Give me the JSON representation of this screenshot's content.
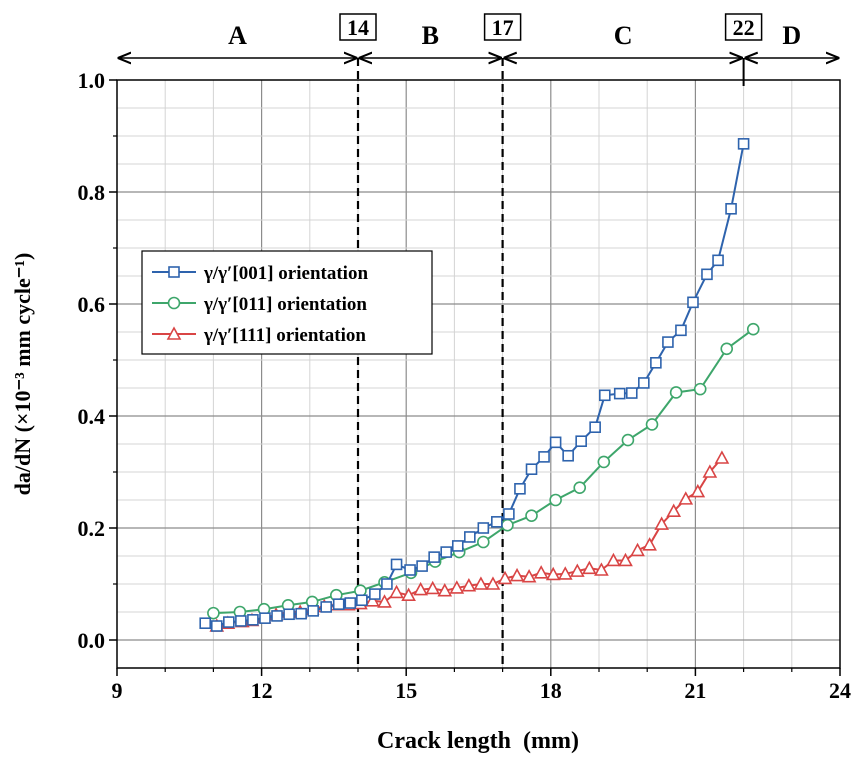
{
  "chart_data": {
    "type": "line",
    "xlabel": "Crack length  (mm)",
    "ylabel": "da/dN (×10⁻³ mm cycle⁻¹)",
    "xlim": [
      9,
      24
    ],
    "ylim": [
      -0.05,
      1.0
    ],
    "xticks": [
      "9",
      "12",
      "15",
      "18",
      "21",
      "24"
    ],
    "yticks": [
      "0.0",
      "0.2",
      "0.4",
      "0.6",
      "0.8",
      "1.0"
    ],
    "grid": true,
    "legend_position": "center-left",
    "regions": [
      {
        "label": "A",
        "from": 9,
        "to": 14
      },
      {
        "label": "B",
        "from": 14,
        "to": 17
      },
      {
        "label": "C",
        "from": 17,
        "to": 22
      },
      {
        "label": "D",
        "from": 22,
        "to": 24
      }
    ],
    "boundaries": [
      {
        "value": 14,
        "label": "14",
        "style": "dashed"
      },
      {
        "value": 17,
        "label": "17",
        "style": "dashed"
      },
      {
        "value": 22,
        "label": "22",
        "style": "solid-tick"
      }
    ],
    "series": [
      {
        "name": "γ/γ′[001] orientation",
        "color": "#2e63ad",
        "marker": "square",
        "x": [
          10.83,
          11.07,
          11.32,
          11.57,
          11.82,
          12.07,
          12.32,
          12.57,
          12.82,
          13.07,
          13.34,
          13.6,
          13.84,
          14.08,
          14.35,
          14.6,
          14.8,
          15.08,
          15.33,
          15.58,
          15.83,
          16.07,
          16.32,
          16.6,
          16.88,
          17.13,
          17.36,
          17.6,
          17.86,
          18.1,
          18.36,
          18.63,
          18.92,
          19.12,
          19.43,
          19.68,
          19.93,
          20.18,
          20.43,
          20.7,
          20.95,
          21.24,
          21.47,
          21.74,
          22.0
        ],
        "y": [
          0.03,
          0.025,
          0.032,
          0.034,
          0.036,
          0.039,
          0.043,
          0.046,
          0.047,
          0.052,
          0.059,
          0.064,
          0.066,
          0.071,
          0.082,
          0.1,
          0.135,
          0.125,
          0.132,
          0.148,
          0.157,
          0.168,
          0.184,
          0.2,
          0.211,
          0.225,
          0.27,
          0.305,
          0.327,
          0.353,
          0.329,
          0.355,
          0.38,
          0.437,
          0.44,
          0.441,
          0.459,
          0.495,
          0.532,
          0.553,
          0.603,
          0.653,
          0.678,
          0.77,
          0.886
        ]
      },
      {
        "name": "γ/γ′[011] orientation",
        "color": "#3ea66b",
        "marker": "circle",
        "x": [
          11.0,
          11.55,
          12.05,
          12.55,
          13.05,
          13.55,
          14.05,
          14.55,
          15.1,
          15.6,
          16.1,
          16.6,
          17.1,
          17.6,
          18.1,
          18.6,
          19.1,
          19.6,
          20.1,
          20.6,
          21.1,
          21.65,
          22.2
        ],
        "y": [
          0.048,
          0.05,
          0.055,
          0.062,
          0.068,
          0.08,
          0.088,
          0.103,
          0.12,
          0.14,
          0.157,
          0.175,
          0.205,
          0.222,
          0.25,
          0.272,
          0.318,
          0.357,
          0.385,
          0.442,
          0.448,
          0.52,
          0.555
        ]
      },
      {
        "name": "γ/γ′[111] orientation",
        "color": "#d94545",
        "marker": "triangle",
        "x": [
          11.07,
          11.3,
          11.6,
          11.8,
          12.05,
          12.3,
          12.55,
          12.8,
          13.05,
          13.3,
          13.55,
          13.8,
          14.05,
          14.3,
          14.55,
          14.8,
          15.05,
          15.3,
          15.55,
          15.8,
          16.05,
          16.3,
          16.55,
          16.8,
          17.05,
          17.3,
          17.55,
          17.8,
          18.05,
          18.3,
          18.55,
          18.8,
          19.05,
          19.3,
          19.55,
          19.8,
          20.05,
          20.3,
          20.55,
          20.8,
          21.05,
          21.3,
          21.55
        ],
        "y": [
          0.025,
          0.03,
          0.033,
          0.035,
          0.04,
          0.045,
          0.05,
          0.05,
          0.055,
          0.06,
          0.063,
          0.063,
          0.065,
          0.07,
          0.068,
          0.085,
          0.08,
          0.09,
          0.092,
          0.088,
          0.093,
          0.097,
          0.1,
          0.1,
          0.11,
          0.115,
          0.113,
          0.12,
          0.117,
          0.118,
          0.123,
          0.128,
          0.125,
          0.142,
          0.142,
          0.16,
          0.17,
          0.207,
          0.23,
          0.252,
          0.265,
          0.3,
          0.325
        ]
      }
    ]
  }
}
